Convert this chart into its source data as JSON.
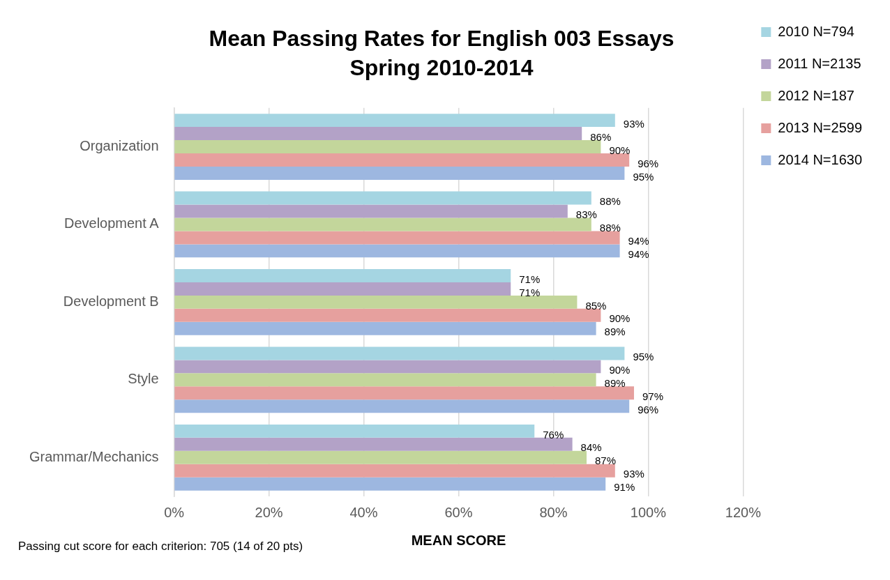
{
  "chart_data": {
    "type": "bar",
    "orientation": "horizontal",
    "title": "Mean Passing Rates for English 003 Essays",
    "subtitle": "Spring 2010-2014",
    "xlabel": "MEAN SCORE",
    "categories": [
      "Organization",
      "Development A",
      "Development B",
      "Style",
      "Grammar/Mechanics"
    ],
    "series": [
      {
        "name": "2010 N=794",
        "color": "#a5d5e2",
        "values": [
          93,
          88,
          71,
          95,
          76
        ],
        "value_labels": [
          "93%",
          "88%",
          "71%",
          "95%",
          "76%"
        ]
      },
      {
        "name": "2011 N=2135",
        "color": "#b3a2c7",
        "values": [
          86,
          83,
          71,
          90,
          84
        ],
        "value_labels": [
          "86%",
          "83%",
          "71%",
          "90%",
          "84%"
        ]
      },
      {
        "name": "2012 N=187",
        "color": "#c3d69b",
        "values": [
          90,
          88,
          85,
          89,
          87
        ],
        "value_labels": [
          "90%",
          "88%",
          "85%",
          "89%",
          "87%"
        ]
      },
      {
        "name": "2013 N=2599",
        "color": "#e6a09e",
        "values": [
          96,
          94,
          90,
          97,
          93
        ],
        "value_labels": [
          "96%",
          "94%",
          "90%",
          "97%",
          "93%"
        ]
      },
      {
        "name": "2014 N=1630",
        "color": "#9db7e0",
        "values": [
          95,
          94,
          89,
          96,
          91
        ],
        "value_labels": [
          "95%",
          "94%",
          "89%",
          "96%",
          "91%"
        ]
      }
    ],
    "xlim": [
      0,
      120
    ],
    "xticks": [
      {
        "value": 0,
        "label": "0%"
      },
      {
        "value": 20,
        "label": "20%"
      },
      {
        "value": 40,
        "label": "40%"
      },
      {
        "value": 60,
        "label": "60%"
      },
      {
        "value": 80,
        "label": "80%"
      },
      {
        "value": 100,
        "label": "100%"
      },
      {
        "value": 120,
        "label": "120%"
      }
    ],
    "grid": "x",
    "legend": "right",
    "annotations": [
      "Passing cut score for each criterion: 705 (14 of 20 pts)"
    ]
  }
}
